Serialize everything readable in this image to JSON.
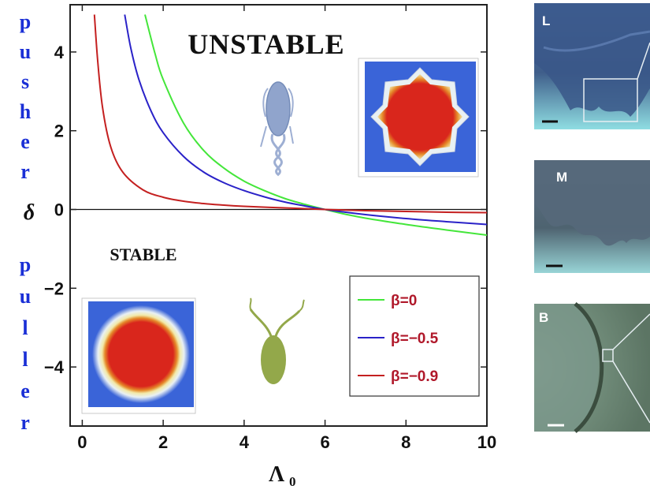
{
  "chart_data": {
    "type": "line",
    "xlabel": "Λ",
    "xlabel_sub": "0",
    "ylabel": "δ",
    "xlim": [
      -0.3,
      10
    ],
    "ylim": [
      -5.5,
      5.2
    ],
    "x_ticks": [
      0,
      2,
      4,
      6,
      8,
      10
    ],
    "y_ticks": [
      4,
      2,
      0,
      -2,
      -4
    ],
    "x_tick_labels": [
      "0",
      "2",
      "4",
      "6",
      "8",
      "10"
    ],
    "y_tick_labels": [
      "4",
      "2",
      "0",
      "−2",
      "−4"
    ],
    "series": [
      {
        "name": "β=0",
        "color": "#44e63a",
        "x": [
          1.55,
          1.8,
          2.0,
          2.5,
          3.0,
          3.5,
          4.0,
          4.5,
          5.0,
          5.5,
          6.0,
          6.5,
          7.0,
          8.0,
          9.0,
          10.0
        ],
        "y": [
          4.95,
          3.95,
          3.3,
          2.2,
          1.5,
          1.05,
          0.72,
          0.48,
          0.28,
          0.13,
          0.0,
          -0.12,
          -0.22,
          -0.38,
          -0.52,
          -0.65
        ]
      },
      {
        "name": "β=−0.5",
        "color": "#2a22c8",
        "x": [
          1.05,
          1.2,
          1.4,
          1.7,
          2.0,
          2.5,
          3.0,
          3.5,
          4.0,
          4.5,
          5.0,
          5.5,
          6.0,
          7.0,
          8.0,
          9.0,
          10.0
        ],
        "y": [
          4.95,
          4.1,
          3.3,
          2.5,
          1.95,
          1.35,
          0.95,
          0.68,
          0.48,
          0.32,
          0.19,
          0.09,
          0.0,
          -0.13,
          -0.23,
          -0.31,
          -0.38
        ]
      },
      {
        "name": "β=−0.9",
        "color": "#c42020",
        "x": [
          0.3,
          0.38,
          0.5,
          0.7,
          1.0,
          1.5,
          2.0,
          2.5,
          3.0,
          3.5,
          4.0,
          5.0,
          6.0,
          7.0,
          8.0,
          9.0,
          10.0
        ],
        "y": [
          4.95,
          3.8,
          2.6,
          1.6,
          0.95,
          0.5,
          0.31,
          0.21,
          0.15,
          0.11,
          0.08,
          0.04,
          0.0,
          -0.03,
          -0.05,
          -0.07,
          -0.08
        ]
      }
    ],
    "annotations": {
      "unstable": "UNSTABLE",
      "stable": "STABLE"
    },
    "legend": {
      "position": "bottom-right",
      "entries": [
        {
          "label": "β=0",
          "color": "#44e63a"
        },
        {
          "label": "β=−0.5",
          "color": "#2a22c8"
        },
        {
          "label": "β=−0.9",
          "color": "#c42020"
        }
      ]
    },
    "grid": false
  },
  "side_words": {
    "top": [
      "p",
      "u",
      "s",
      "h",
      "e",
      "r"
    ],
    "bottom": [
      "p",
      "u",
      "l",
      "l",
      "e",
      "r"
    ],
    "color": "#1a2fd6"
  },
  "photos": [
    {
      "label": "L"
    },
    {
      "label": "M"
    },
    {
      "label": "B"
    }
  ]
}
